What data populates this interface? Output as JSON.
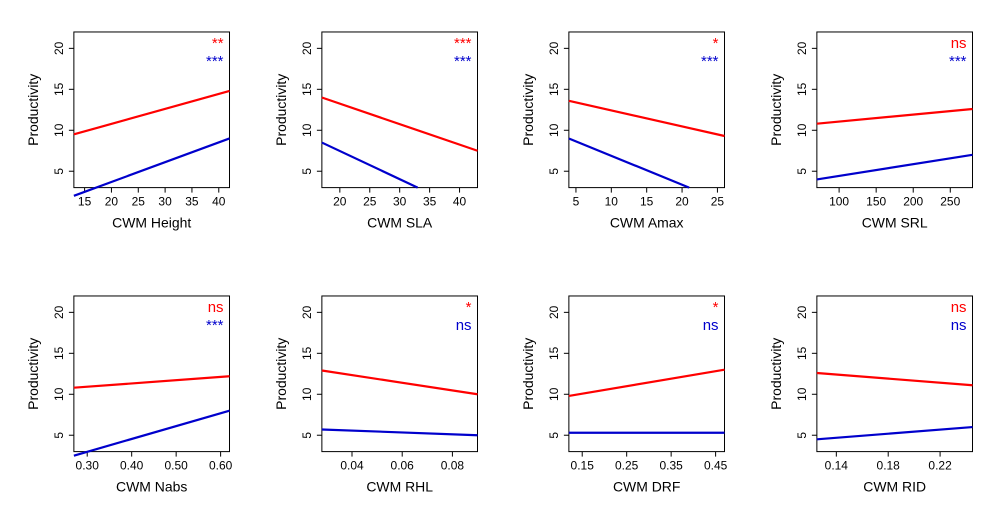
{
  "global": {
    "background_color": "#ffffff",
    "axis_color": "#000000",
    "tick_color": "#000000",
    "tick_fontsize": 12,
    "label_fontsize": 14,
    "line_width": 2.2,
    "series_colors": {
      "red": "#ff0000",
      "blue": "#0000cc"
    },
    "sig_fontsize": 15,
    "ylabel": "Productivity",
    "ylim": [
      3,
      22
    ],
    "yticks": [
      5,
      10,
      15,
      20
    ]
  },
  "panels": [
    {
      "id": "height",
      "xlabel": "CWM Height",
      "xlim": [
        13,
        42
      ],
      "xticks": [
        15,
        20,
        25,
        30,
        35,
        40
      ],
      "lines": {
        "red": {
          "x": [
            13,
            42
          ],
          "y": [
            9.5,
            14.8
          ]
        },
        "blue": {
          "x": [
            13,
            42
          ],
          "y": [
            2.0,
            9.0
          ]
        }
      },
      "sig": {
        "red": "**",
        "blue": "***"
      }
    },
    {
      "id": "sla",
      "xlabel": "CWM SLA",
      "xlim": [
        17,
        43
      ],
      "xticks": [
        20,
        25,
        30,
        35,
        40
      ],
      "lines": {
        "red": {
          "x": [
            17,
            43
          ],
          "y": [
            14.0,
            7.5
          ]
        },
        "blue": {
          "x": [
            17,
            33
          ],
          "y": [
            8.5,
            3.0
          ]
        }
      },
      "sig": {
        "red": "***",
        "blue": "***"
      }
    },
    {
      "id": "amax",
      "xlabel": "CWM Amax",
      "xlim": [
        4,
        26
      ],
      "xticks": [
        5,
        10,
        15,
        20,
        25
      ],
      "lines": {
        "red": {
          "x": [
            4,
            26
          ],
          "y": [
            13.6,
            9.3
          ]
        },
        "blue": {
          "x": [
            4,
            21
          ],
          "y": [
            9.0,
            3.0
          ]
        }
      },
      "sig": {
        "red": "*",
        "blue": "***"
      }
    },
    {
      "id": "srl",
      "xlabel": "CWM SRL",
      "xlim": [
        70,
        280
      ],
      "xticks": [
        100,
        150,
        200,
        250
      ],
      "lines": {
        "red": {
          "x": [
            70,
            280
          ],
          "y": [
            10.8,
            12.6
          ]
        },
        "blue": {
          "x": [
            70,
            280
          ],
          "y": [
            4.0,
            7.0
          ]
        }
      },
      "sig": {
        "red": "ns",
        "blue": "***"
      }
    },
    {
      "id": "nabs",
      "xlabel": "CWM Nabs",
      "xlim": [
        0.27,
        0.62
      ],
      "xticks": [
        0.3,
        0.4,
        0.5,
        0.6
      ],
      "xtick_decimals": 2,
      "lines": {
        "red": {
          "x": [
            0.27,
            0.62
          ],
          "y": [
            10.8,
            12.2
          ]
        },
        "blue": {
          "x": [
            0.27,
            0.62
          ],
          "y": [
            2.5,
            8.0
          ]
        }
      },
      "sig": {
        "red": "ns",
        "blue": "***"
      }
    },
    {
      "id": "rhl",
      "xlabel": "CWM RHL",
      "xlim": [
        0.028,
        0.09
      ],
      "xticks": [
        0.04,
        0.06,
        0.08
      ],
      "xtick_decimals": 2,
      "lines": {
        "red": {
          "x": [
            0.028,
            0.09
          ],
          "y": [
            12.9,
            10.0
          ]
        },
        "blue": {
          "x": [
            0.028,
            0.09
          ],
          "y": [
            5.7,
            5.0
          ]
        }
      },
      "sig": {
        "red": "*",
        "blue": "ns"
      }
    },
    {
      "id": "drf",
      "xlabel": "CWM DRF",
      "xlim": [
        0.12,
        0.47
      ],
      "xticks": [
        0.15,
        0.25,
        0.35,
        0.45
      ],
      "xtick_decimals": 2,
      "lines": {
        "red": {
          "x": [
            0.12,
            0.47
          ],
          "y": [
            9.8,
            13.0
          ]
        },
        "blue": {
          "x": [
            0.12,
            0.47
          ],
          "y": [
            5.3,
            5.3
          ]
        }
      },
      "sig": {
        "red": "*",
        "blue": "ns"
      }
    },
    {
      "id": "rid",
      "xlabel": "CWM RID",
      "xlim": [
        0.125,
        0.245
      ],
      "xticks": [
        0.14,
        0.18,
        0.22
      ],
      "xtick_decimals": 2,
      "lines": {
        "red": {
          "x": [
            0.125,
            0.245
          ],
          "y": [
            12.6,
            11.1
          ]
        },
        "blue": {
          "x": [
            0.125,
            0.245
          ],
          "y": [
            4.5,
            6.0
          ]
        }
      },
      "sig": {
        "red": "ns",
        "blue": "ns"
      }
    }
  ]
}
